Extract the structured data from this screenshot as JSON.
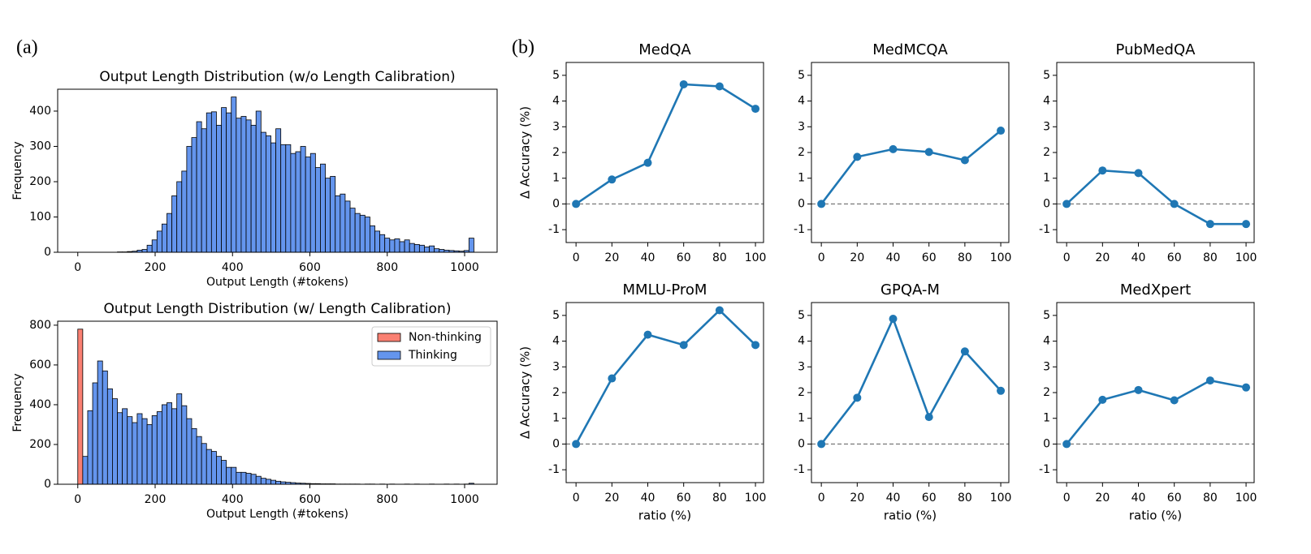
{
  "panel_labels": [
    "(a)",
    "(b)"
  ],
  "chart_data": [
    {
      "type": "histogram",
      "title": "Output Length Distribution (w/o Length Calibration)",
      "xlabel": "Output Length (#tokens)",
      "ylabel": "Frequency",
      "color": "#6495ed",
      "bins": [
        0,
        12.8,
        25.6,
        38.4,
        51.2,
        64,
        76.8,
        89.6,
        102.4,
        115.2,
        128,
        140.8,
        153.6,
        166.4,
        179.2,
        192,
        204.8,
        217.6,
        230.4,
        243.2,
        256,
        268.8,
        281.6,
        294.4,
        307.2,
        320,
        332.8,
        345.6,
        358.4,
        371.2,
        384,
        396.8,
        409.6,
        422.4,
        435.2,
        448,
        460.8,
        473.6,
        486.4,
        499.2,
        512,
        524.8,
        537.6,
        550.4,
        563.2,
        576,
        588.8,
        601.6,
        614.4,
        627.2,
        640,
        652.8,
        665.6,
        678.4,
        691.2,
        704,
        716.8,
        729.6,
        742.4,
        755.2,
        768,
        780.8,
        793.6,
        806.4,
        819.2,
        832,
        844.8,
        857.6,
        870.4,
        883.2,
        896,
        908.8,
        921.6,
        934.4,
        947.2,
        960,
        972.8,
        985.6,
        998.4,
        1011.2,
        1024
      ],
      "values": [
        0,
        0,
        0,
        0,
        0,
        0,
        0,
        0,
        1,
        1,
        2,
        3,
        6,
        8,
        20,
        35,
        60,
        80,
        110,
        160,
        200,
        230,
        300,
        325,
        370,
        350,
        395,
        398,
        360,
        410,
        395,
        440,
        380,
        385,
        375,
        360,
        400,
        340,
        330,
        310,
        350,
        305,
        305,
        280,
        285,
        300,
        270,
        280,
        240,
        250,
        210,
        215,
        160,
        165,
        145,
        125,
        110,
        105,
        100,
        75,
        60,
        50,
        40,
        35,
        38,
        30,
        35,
        25,
        22,
        20,
        15,
        18,
        10,
        8,
        6,
        5,
        4,
        3,
        5,
        40
      ],
      "xlim": [
        -52,
        1084
      ],
      "xticks": [
        0,
        200,
        400,
        600,
        800,
        1000
      ],
      "ylim": [
        0,
        462
      ],
      "yticks": [
        0,
        100,
        200,
        300,
        400
      ]
    },
    {
      "type": "histogram",
      "title": "Output Length Distribution (w/ Length Calibration)",
      "xlabel": "Output Length (#tokens)",
      "ylabel": "Frequency",
      "legend": "upper right",
      "bins": [
        0,
        12.8,
        25.6,
        38.4,
        51.2,
        64,
        76.8,
        89.6,
        102.4,
        115.2,
        128,
        140.8,
        153.6,
        166.4,
        179.2,
        192,
        204.8,
        217.6,
        230.4,
        243.2,
        256,
        268.8,
        281.6,
        294.4,
        307.2,
        320,
        332.8,
        345.6,
        358.4,
        371.2,
        384,
        396.8,
        409.6,
        422.4,
        435.2,
        448,
        460.8,
        473.6,
        486.4,
        499.2,
        512,
        524.8,
        537.6,
        550.4,
        563.2,
        576,
        588.8,
        601.6,
        614.4,
        627.2,
        640,
        652.8,
        665.6,
        678.4,
        691.2,
        704,
        716.8,
        729.6,
        742.4,
        755.2,
        768,
        780.8,
        793.6,
        806.4,
        819.2,
        832,
        844.8,
        857.6,
        870.4,
        883.2,
        896,
        908.8,
        921.6,
        934.4,
        947.2,
        960,
        972.8,
        985.6,
        998.4,
        1011.2,
        1024
      ],
      "series": [
        {
          "name": "Non-thinking",
          "color": "#fa8072",
          "values": [
            780,
            0,
            0,
            0,
            0,
            0,
            0,
            0,
            0,
            0,
            0,
            0,
            0,
            0,
            0,
            0,
            0,
            0,
            0,
            0,
            0,
            0,
            0,
            0,
            0,
            0,
            0,
            0,
            0,
            0,
            0,
            0,
            0,
            0,
            0,
            0,
            0,
            0,
            0,
            0,
            0,
            0,
            0,
            0,
            0,
            0,
            0,
            0,
            0,
            0,
            0,
            0,
            0,
            0,
            0,
            0,
            0,
            0,
            0,
            0,
            0,
            0,
            0,
            0,
            0,
            0,
            0,
            0,
            0,
            0,
            0,
            0,
            0,
            0,
            0,
            0,
            0,
            0,
            0,
            0
          ]
        },
        {
          "name": "Thinking",
          "color": "#6495ed",
          "values": [
            0,
            140,
            370,
            510,
            620,
            570,
            480,
            430,
            360,
            380,
            340,
            310,
            355,
            330,
            300,
            345,
            365,
            400,
            410,
            380,
            455,
            395,
            330,
            280,
            240,
            205,
            175,
            165,
            140,
            120,
            85,
            85,
            60,
            60,
            55,
            50,
            40,
            30,
            25,
            20,
            15,
            12,
            10,
            8,
            6,
            5,
            4,
            3,
            3,
            2,
            2,
            2,
            1,
            1,
            1,
            1,
            1,
            0,
            1,
            1,
            0,
            1,
            0,
            1,
            0,
            0,
            1,
            0,
            1,
            0,
            0,
            1,
            0,
            0,
            1,
            0,
            1,
            0,
            1,
            5
          ]
        }
      ],
      "xlim": [
        -52,
        1084
      ],
      "xticks": [
        0,
        200,
        400,
        600,
        800,
        1000
      ],
      "ylim": [
        0,
        820
      ],
      "yticks": [
        0,
        200,
        400,
        600,
        800
      ]
    },
    {
      "type": "line",
      "title": "MedQA",
      "ylabel": "Δ Accuracy (%)",
      "color": "#1f77b4",
      "x": [
        0,
        20,
        40,
        60,
        80,
        100
      ],
      "values": [
        0,
        0.95,
        1.6,
        4.65,
        4.57,
        3.7
      ],
      "reference_line": 0,
      "xlim": [
        -5.5,
        104.5
      ],
      "xticks": [
        0,
        20,
        40,
        60,
        80,
        100
      ],
      "ylim": [
        -1.5,
        5.5
      ],
      "yticks": [
        -1,
        0,
        1,
        2,
        3,
        4,
        5
      ]
    },
    {
      "type": "line",
      "title": "MedMCQA",
      "color": "#1f77b4",
      "x": [
        0,
        20,
        40,
        60,
        80,
        100
      ],
      "values": [
        0,
        1.83,
        2.13,
        2.02,
        1.7,
        2.85
      ],
      "reference_line": 0,
      "xlim": [
        -5.5,
        104.5
      ],
      "xticks": [
        0,
        20,
        40,
        60,
        80,
        100
      ],
      "ylim": [
        -1.5,
        5.5
      ],
      "yticks": [
        -1,
        0,
        1,
        2,
        3,
        4,
        5
      ]
    },
    {
      "type": "line",
      "title": "PubMedQA",
      "color": "#1f77b4",
      "x": [
        0,
        20,
        40,
        60,
        80,
        100
      ],
      "values": [
        0,
        1.3,
        1.2,
        0,
        -0.78,
        -0.78
      ],
      "reference_line": 0,
      "xlim": [
        -5.5,
        104.5
      ],
      "xticks": [
        0,
        20,
        40,
        60,
        80,
        100
      ],
      "ylim": [
        -1.5,
        5.5
      ],
      "yticks": [
        -1,
        0,
        1,
        2,
        3,
        4,
        5
      ]
    },
    {
      "type": "line",
      "title": "MMLU-ProM",
      "ylabel": "Δ Accuracy (%)",
      "xlabel": "ratio (%)",
      "color": "#1f77b4",
      "x": [
        0,
        20,
        40,
        60,
        80,
        100
      ],
      "values": [
        0,
        2.55,
        4.25,
        3.85,
        5.2,
        3.85
      ],
      "reference_line": 0,
      "xlim": [
        -5.5,
        104.5
      ],
      "xticks": [
        0,
        20,
        40,
        60,
        80,
        100
      ],
      "ylim": [
        -1.5,
        5.5
      ],
      "yticks": [
        -1,
        0,
        1,
        2,
        3,
        4,
        5
      ]
    },
    {
      "type": "line",
      "title": "GPQA-M",
      "xlabel": "ratio (%)",
      "color": "#1f77b4",
      "x": [
        0,
        20,
        40,
        60,
        80,
        100
      ],
      "values": [
        0,
        1.8,
        4.87,
        1.05,
        3.6,
        2.07
      ],
      "reference_line": 0,
      "xlim": [
        -5.5,
        104.5
      ],
      "xticks": [
        0,
        20,
        40,
        60,
        80,
        100
      ],
      "ylim": [
        -1.5,
        5.5
      ],
      "yticks": [
        -1,
        0,
        1,
        2,
        3,
        4,
        5
      ]
    },
    {
      "type": "line",
      "title": "MedXpert",
      "xlabel": "ratio (%)",
      "color": "#1f77b4",
      "x": [
        0,
        20,
        40,
        60,
        80,
        100
      ],
      "values": [
        0,
        1.72,
        2.1,
        1.7,
        2.47,
        2.2
      ],
      "reference_line": 0,
      "xlim": [
        -5.5,
        104.5
      ],
      "xticks": [
        0,
        20,
        40,
        60,
        80,
        100
      ],
      "ylim": [
        -1.5,
        5.5
      ],
      "yticks": [
        -1,
        0,
        1,
        2,
        3,
        4,
        5
      ]
    }
  ]
}
